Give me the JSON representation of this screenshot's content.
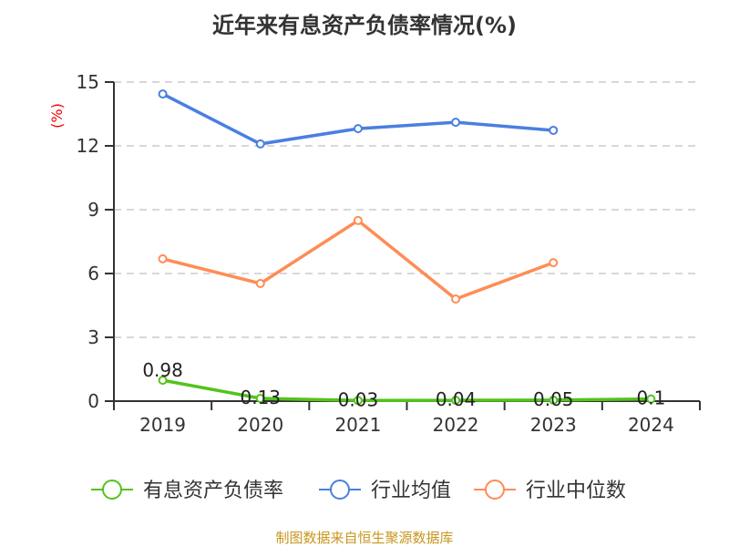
{
  "chart_data": {
    "type": "line",
    "title": "近年来有息资产负债率情况(%)",
    "ylabel": "(%)",
    "ylim": [
      0,
      15
    ],
    "yticks": [
      0,
      3,
      6,
      9,
      12,
      15
    ],
    "grid": true,
    "legend_position": "bottom",
    "categories": [
      "2019",
      "2020",
      "2021",
      "2022",
      "2023",
      "2024"
    ],
    "series": [
      {
        "name": "有息资产负债率",
        "color": "#52c41a",
        "values": [
          0.98,
          0.13,
          0.03,
          0.04,
          0.05,
          0.1
        ],
        "labels": [
          "0.98",
          "0.13",
          "0.03",
          "0.04",
          "0.05",
          "0.1"
        ]
      },
      {
        "name": "行业均值",
        "color": "#4a7fe0",
        "values": [
          14.44,
          12.09,
          12.81,
          13.11,
          12.73,
          null
        ]
      },
      {
        "name": "行业中位数",
        "color": "#ff8c55",
        "values": [
          6.69,
          5.53,
          8.49,
          4.8,
          6.51,
          null
        ]
      }
    ]
  },
  "footer": "制图数据来自恒生聚源数据库"
}
